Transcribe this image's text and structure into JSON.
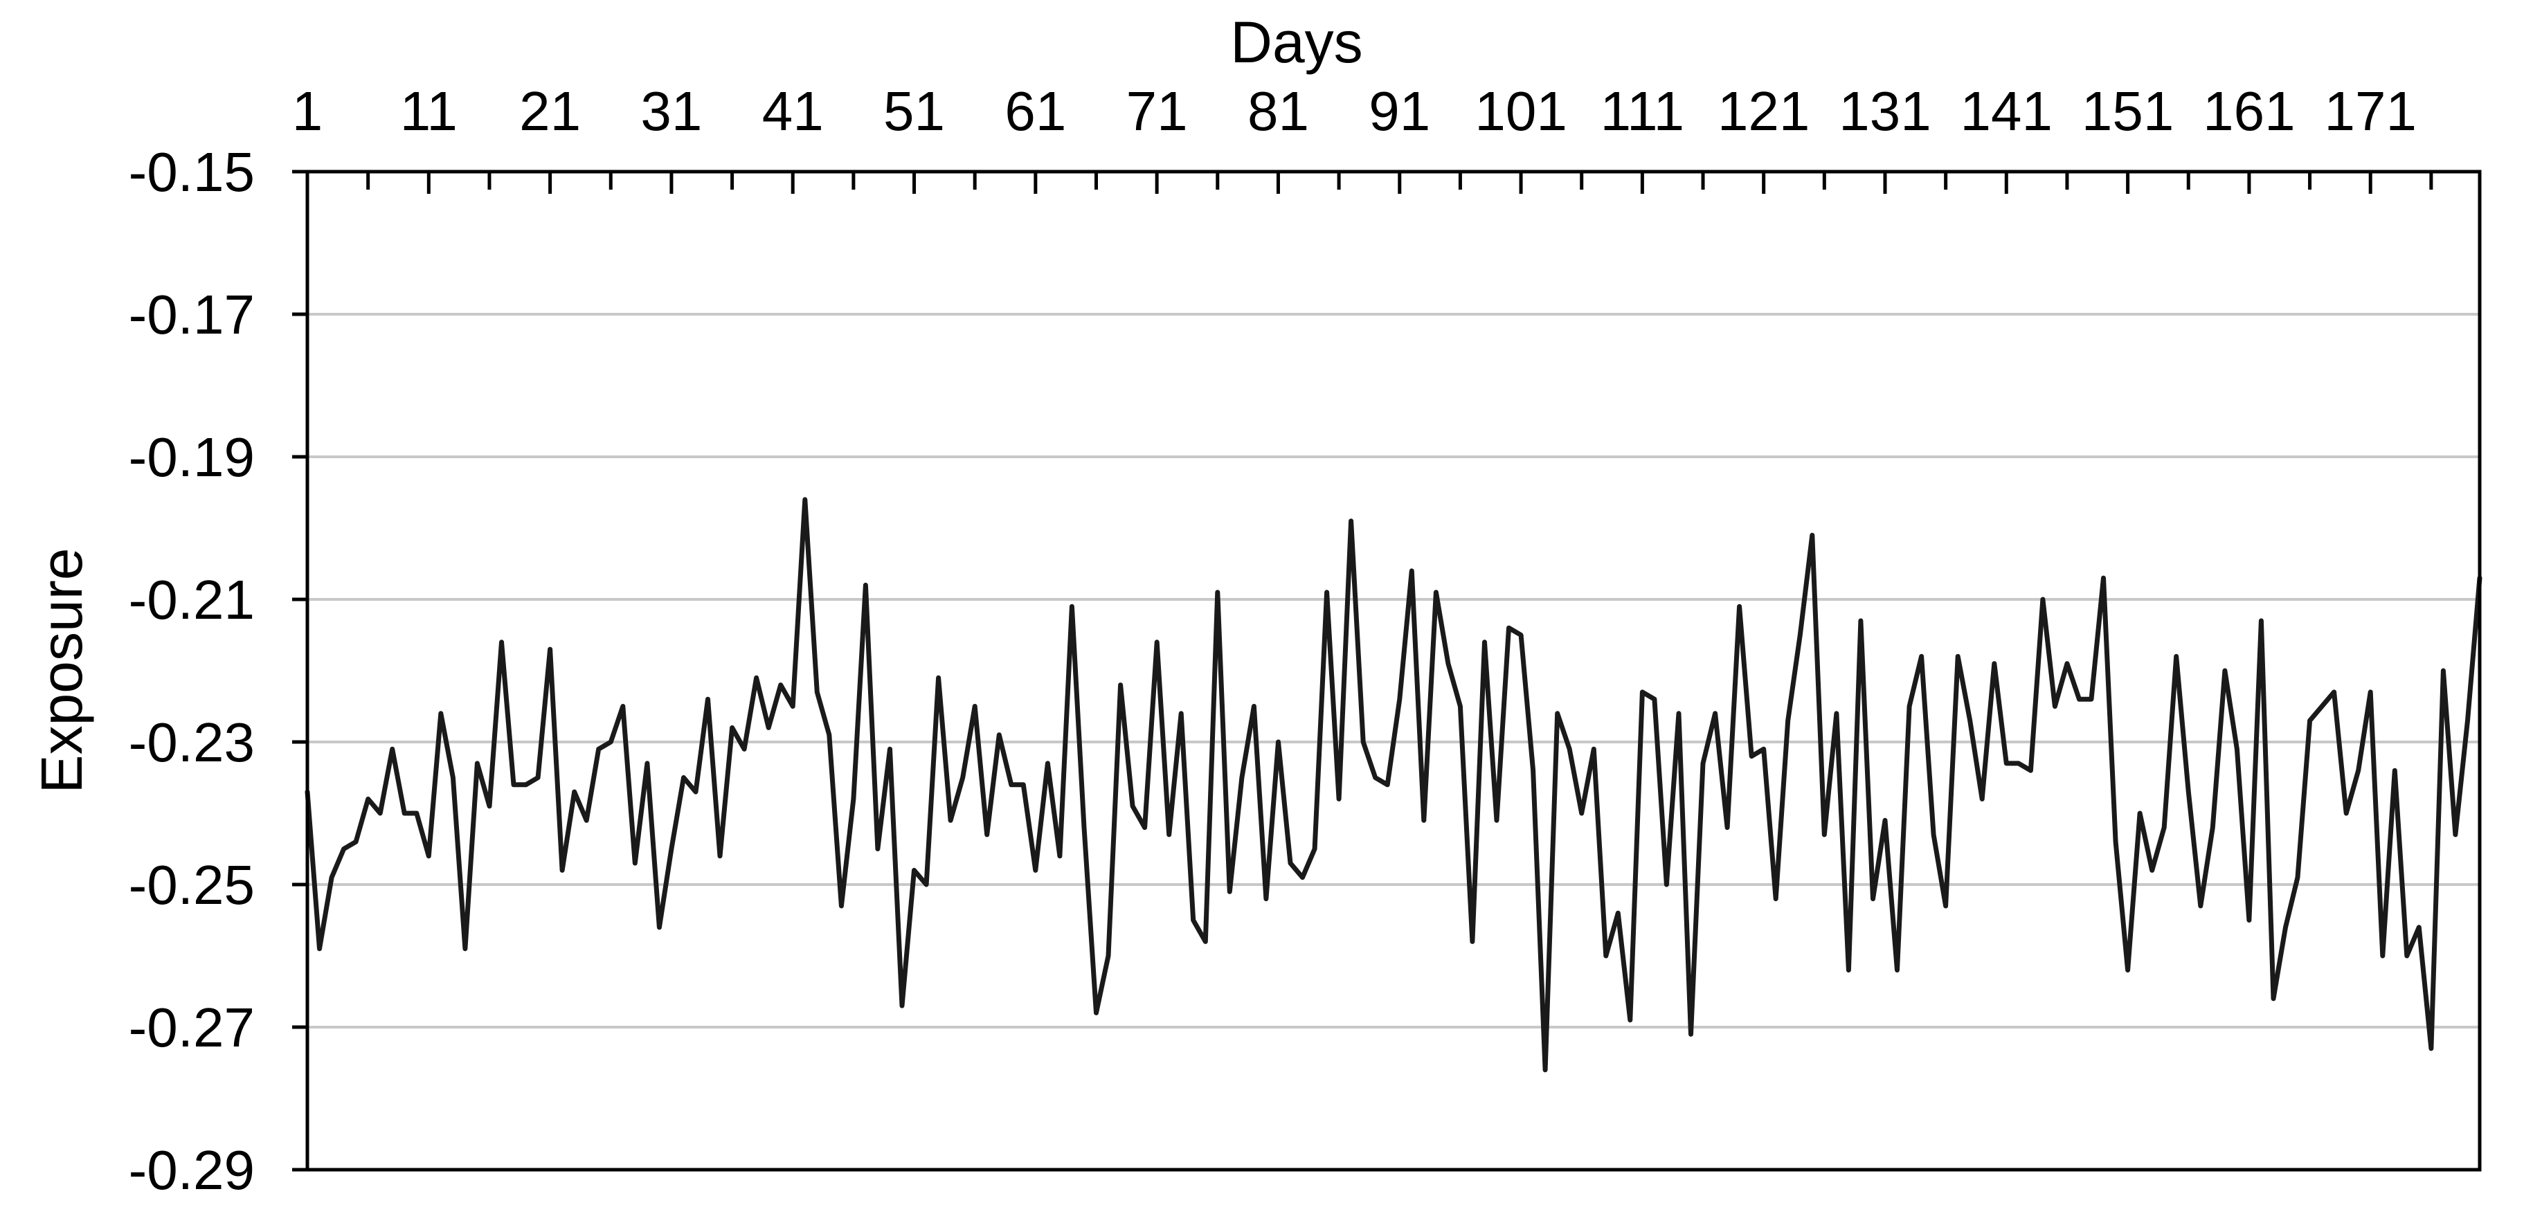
{
  "chart_data": {
    "type": "line",
    "title": "",
    "xlabel": "Days",
    "ylabel": "Exposure",
    "x_axis_position": "top",
    "xlim": [
      1,
      180
    ],
    "ylim": [
      -0.29,
      -0.15
    ],
    "x_ticks": [
      1,
      11,
      21,
      31,
      41,
      51,
      61,
      71,
      81,
      91,
      101,
      111,
      121,
      131,
      141,
      151,
      161,
      171
    ],
    "y_ticks": [
      -0.15,
      -0.17,
      -0.19,
      -0.21,
      -0.23,
      -0.25,
      -0.27,
      -0.29
    ],
    "y_tick_labels": [
      "-0.15",
      "-0.17",
      "-0.19",
      "-0.21",
      "-0.23",
      "-0.25",
      "-0.27",
      "-0.29"
    ],
    "grid": "horizontal",
    "legend": "none",
    "colors": {
      "line": "#1a1a1a",
      "grid": "#c8c8c8",
      "axis": "#000000"
    },
    "series": [
      {
        "values": [
          -0.237,
          -0.259,
          -0.249,
          -0.245,
          -0.244,
          -0.238,
          -0.24,
          -0.231,
          -0.24,
          -0.24,
          -0.246,
          -0.226,
          -0.235,
          -0.259,
          -0.233,
          -0.239,
          -0.216,
          -0.236,
          -0.236,
          -0.235,
          -0.217,
          -0.248,
          -0.237,
          -0.241,
          -0.231,
          -0.23,
          -0.225,
          -0.247,
          -0.233,
          -0.256,
          -0.245,
          -0.235,
          -0.237,
          -0.224,
          -0.246,
          -0.228,
          -0.231,
          -0.221,
          -0.228,
          -0.222,
          -0.225,
          -0.196,
          -0.223,
          -0.229,
          -0.253,
          -0.238,
          -0.208,
          -0.245,
          -0.231,
          -0.267,
          -0.248,
          -0.25,
          -0.221,
          -0.241,
          -0.235,
          -0.225,
          -0.243,
          -0.229,
          -0.236,
          -0.236,
          -0.248,
          -0.233,
          -0.246,
          -0.211,
          -0.242,
          -0.268,
          -0.26,
          -0.222,
          -0.239,
          -0.242,
          -0.216,
          -0.243,
          -0.226,
          -0.255,
          -0.258,
          -0.209,
          -0.251,
          -0.235,
          -0.225,
          -0.252,
          -0.23,
          -0.247,
          -0.249,
          -0.245,
          -0.209,
          -0.238,
          -0.199,
          -0.23,
          -0.235,
          -0.236,
          -0.224,
          -0.206,
          -0.241,
          -0.209,
          -0.219,
          -0.225,
          -0.258,
          -0.216,
          -0.241,
          -0.214,
          -0.215,
          -0.234,
          -0.276,
          -0.226,
          -0.231,
          -0.24,
          -0.231,
          -0.26,
          -0.254,
          -0.269,
          -0.223,
          -0.224,
          -0.25,
          -0.226,
          -0.271,
          -0.233,
          -0.226,
          -0.242,
          -0.211,
          -0.232,
          -0.231,
          -0.252,
          -0.227,
          -0.215,
          -0.201,
          -0.243,
          -0.226,
          -0.262,
          -0.213,
          -0.252,
          -0.241,
          -0.262,
          -0.225,
          -0.218,
          -0.243,
          -0.253,
          -0.218,
          -0.227,
          -0.238,
          -0.219,
          -0.233,
          -0.233,
          -0.234,
          -0.21,
          -0.225,
          -0.219,
          -0.224,
          -0.224,
          -0.207,
          -0.244,
          -0.262,
          -0.24,
          -0.248,
          -0.242,
          -0.218,
          -0.237,
          -0.253,
          -0.242,
          -0.22,
          -0.231,
          -0.255,
          -0.213,
          -0.266,
          -0.256,
          -0.249,
          -0.227,
          -0.225,
          -0.223,
          -0.24,
          -0.234,
          -0.223,
          -0.26,
          -0.234,
          -0.26,
          -0.256,
          -0.273,
          -0.22,
          -0.243,
          -0.227,
          -0.207
        ]
      }
    ]
  }
}
